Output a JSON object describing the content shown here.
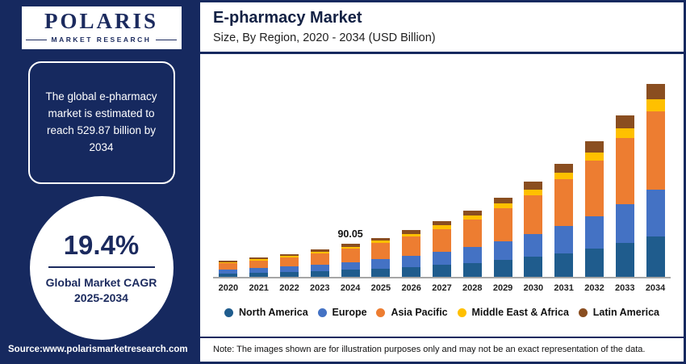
{
  "sidebar": {
    "logo_title": "POLARIS",
    "logo_subtitle": "MARKET RESEARCH",
    "highlight_text": "The global e-pharmacy market is estimated to reach 529.87 billion by 2034",
    "cagr_value": "19.4%",
    "cagr_label_line1": "Global Market CAGR",
    "cagr_label_line2": "2025-2034",
    "source": "Source:www.polarismarketresearch.com"
  },
  "header": {
    "title": "E-pharmacy Market",
    "subtitle": "Size, By Region, 2020 - 2034 (USD Billion)"
  },
  "footer": {
    "note": "Note: The images shown are for illustration purposes only and may not be an exact representation of the data."
  },
  "colors": {
    "navy": "#16295f",
    "white": "#ffffff"
  },
  "chart_data": {
    "type": "bar",
    "stacked": true,
    "title": "E-pharmacy Market",
    "subtitle": "Size, By Region, 2020 - 2034 (USD Billion)",
    "xlabel": "",
    "ylabel": "USD Billion",
    "ylim": [
      0,
      550
    ],
    "grid": false,
    "legend_position": "bottom",
    "categories": [
      "2020",
      "2021",
      "2022",
      "2023",
      "2024",
      "2025",
      "2026",
      "2027",
      "2028",
      "2029",
      "2030",
      "2031",
      "2032",
      "2033",
      "2034"
    ],
    "series": [
      {
        "name": "North America",
        "color": "#1f5c8d",
        "values": [
          9.3,
          11.1,
          13.3,
          15.8,
          18.9,
          22.6,
          27.0,
          32.2,
          38.4,
          45.9,
          54.8,
          65.4,
          78.1,
          93.3,
          111.3
        ]
      },
      {
        "name": "Europe",
        "color": "#4472c4",
        "values": [
          10.6,
          12.7,
          15.1,
          18.1,
          21.6,
          25.8,
          30.8,
          36.8,
          43.9,
          52.4,
          62.6,
          74.8,
          89.3,
          106.6,
          127.2
        ]
      },
      {
        "name": "Asia Pacific",
        "color": "#ed7d31",
        "values": [
          18.2,
          21.7,
          25.9,
          30.9,
          36.9,
          44.1,
          52.6,
          62.8,
          75.0,
          89.6,
          107.0,
          127.7,
          152.5,
          182.1,
          217.2
        ]
      },
      {
        "name": "Middle East & Africa",
        "color": "#ffc000",
        "values": [
          2.7,
          3.2,
          3.8,
          4.5,
          5.4,
          6.5,
          7.7,
          9.2,
          11.0,
          13.1,
          15.7,
          18.7,
          22.3,
          26.7,
          31.8
        ]
      },
      {
        "name": "Latin America",
        "color": "#8a4e20",
        "values": [
          3.5,
          4.2,
          5.0,
          6.0,
          7.2,
          8.6,
          10.3,
          12.3,
          14.6,
          17.5,
          20.9,
          24.9,
          29.8,
          35.5,
          42.4
        ]
      }
    ],
    "annotation": {
      "category": "2024",
      "label": "90.05"
    },
    "totals": [
      44.3,
      52.9,
      63.1,
      75.3,
      90.05,
      107.5,
      128.4,
      153.3,
      183.0,
      218.5,
      260.9,
      311.5,
      372.0,
      444.1,
      529.87
    ]
  },
  "legend": [
    {
      "label": "North America",
      "color": "#1f5c8d"
    },
    {
      "label": "Europe",
      "color": "#4472c4"
    },
    {
      "label": "Asia Pacific",
      "color": "#ed7d31"
    },
    {
      "label": "Middle East & Africa",
      "color": "#ffc000"
    },
    {
      "label": "Latin America",
      "color": "#8a4e20"
    }
  ]
}
